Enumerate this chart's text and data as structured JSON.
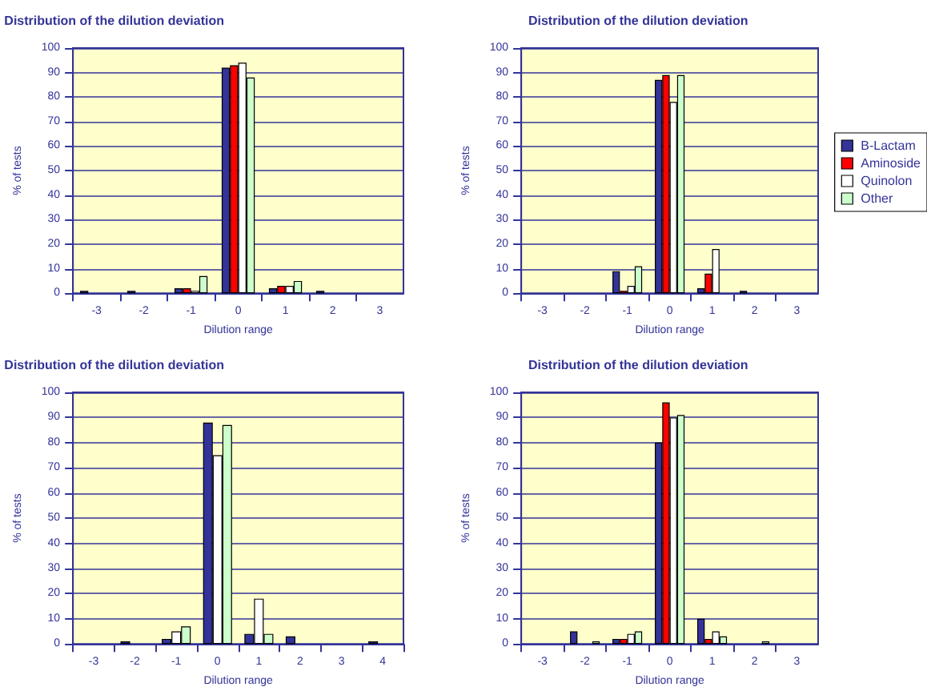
{
  "chart_data": [
    {
      "type": "bar",
      "title": "Distribution of the dilution deviation",
      "xlabel": "Dilution range",
      "ylabel": "% of tests",
      "categories": [
        "-3",
        "-2",
        "-1",
        "0",
        "1",
        "2",
        "3"
      ],
      "ylim": [
        0,
        100
      ],
      "yticks": [
        0,
        10,
        20,
        30,
        40,
        50,
        60,
        70,
        80,
        90,
        100
      ],
      "grid": "y",
      "legend": false,
      "series": [
        {
          "color": "#333399",
          "values": [
            1,
            1,
            2,
            92,
            2,
            1,
            null
          ]
        },
        {
          "color": "#ff0000",
          "values": [
            null,
            null,
            2,
            93,
            3,
            null,
            null
          ]
        },
        {
          "color": "#ffffff",
          "values": [
            null,
            null,
            1,
            94,
            3,
            null,
            null
          ]
        },
        {
          "color": "#ccffcc",
          "values": [
            null,
            null,
            7,
            88,
            5,
            null,
            null
          ]
        }
      ]
    },
    {
      "type": "bar",
      "title": "Distribution of the dilution deviation",
      "xlabel": "Dilution range",
      "ylabel": "% of tests",
      "categories": [
        "-3",
        "-2",
        "-1",
        "0",
        "1",
        "2",
        "3"
      ],
      "ylim": [
        0,
        100
      ],
      "yticks": [
        0,
        10,
        20,
        30,
        40,
        50,
        60,
        70,
        80,
        90,
        100
      ],
      "grid": "y",
      "legend": "right",
      "series": [
        {
          "name": "B-Lactam",
          "color": "#333399",
          "values": [
            null,
            null,
            9,
            87,
            2,
            1,
            null
          ]
        },
        {
          "name": "Aminoside",
          "color": "#ff0000",
          "values": [
            null,
            null,
            1,
            89,
            8,
            null,
            null
          ]
        },
        {
          "name": "Quinolon",
          "color": "#ffffff",
          "values": [
            null,
            null,
            3,
            78,
            18,
            null,
            null
          ]
        },
        {
          "name": "Other",
          "color": "#ccffcc",
          "values": [
            null,
            null,
            11,
            89,
            null,
            null,
            null
          ]
        }
      ]
    },
    {
      "type": "bar",
      "title": "Distribution of the dilution deviation",
      "xlabel": "Dilution range",
      "ylabel": "% of tests",
      "categories": [
        "-3",
        "-2",
        "-1",
        "0",
        "1",
        "2",
        "3",
        "4"
      ],
      "ylim": [
        0,
        100
      ],
      "yticks": [
        0,
        10,
        20,
        30,
        40,
        50,
        60,
        70,
        80,
        90,
        100
      ],
      "grid": "y",
      "legend": false,
      "series": [
        {
          "color": "#333399",
          "values": [
            null,
            1,
            2,
            88,
            4,
            3,
            null,
            1
          ]
        },
        {
          "color": "#ffffff",
          "values": [
            null,
            null,
            5,
            75,
            18,
            null,
            null,
            null
          ]
        },
        {
          "color": "#ccffcc",
          "values": [
            null,
            null,
            7,
            87,
            4,
            null,
            null,
            null
          ]
        }
      ]
    },
    {
      "type": "bar",
      "title": "Distribution of the dilution deviation",
      "xlabel": "Dilution range",
      "ylabel": "% of tests",
      "categories": [
        "-3",
        "-2",
        "-1",
        "0",
        "1",
        "2",
        "3"
      ],
      "ylim": [
        0,
        100
      ],
      "yticks": [
        0,
        10,
        20,
        30,
        40,
        50,
        60,
        70,
        80,
        90,
        100
      ],
      "grid": "y",
      "legend": false,
      "series": [
        {
          "color": "#333399",
          "values": [
            null,
            5,
            2,
            80,
            10,
            null,
            null
          ]
        },
        {
          "color": "#ff0000",
          "values": [
            null,
            null,
            2,
            96,
            2,
            null,
            null
          ]
        },
        {
          "color": "#ffffff",
          "values": [
            null,
            null,
            4,
            90,
            5,
            null,
            null
          ]
        },
        {
          "color": "#ccffcc",
          "values": [
            null,
            1,
            5,
            91,
            3,
            1,
            null
          ]
        }
      ]
    }
  ]
}
